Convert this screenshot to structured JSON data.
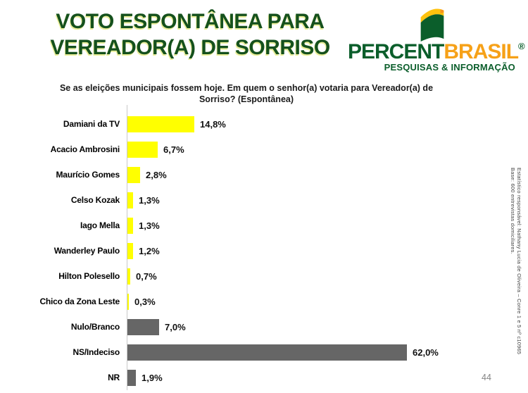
{
  "title": "VOTO ESPONTÂNEA PARA\nVEREADOR(A) DE SORRISO",
  "logo": {
    "brand_part1": "PERCENT",
    "brand_part2": "BRASIL",
    "registered": "®",
    "tagline": "PESQUISAS & INFORMAÇÃO",
    "flag_green": "#0b5e2b",
    "flag_yellow": "#ffc20e"
  },
  "question": "Se as eleições municipais fossem hoje. Em quem o senhor(a) votaria para Vereador(a) de Sorriso? (Espontânea)",
  "chart_data": {
    "type": "bar",
    "orientation": "horizontal",
    "title": "Voto espontâneo para Vereador(a) de Sorriso",
    "categories": [
      "Damiani da TV",
      "Acacio Ambrosini",
      "Maurício Gomes",
      "Celso Kozak",
      "Iago Mella",
      "Wanderley Paulo",
      "Hilton Polesello",
      "Chico da Zona Leste",
      "Nulo/Branco",
      "NS/Indeciso",
      "NR"
    ],
    "values": [
      14.8,
      6.7,
      2.8,
      1.3,
      1.3,
      1.2,
      0.7,
      0.3,
      7.0,
      62.0,
      1.9
    ],
    "value_labels": [
      "14,8%",
      "6,7%",
      "2,8%",
      "1,3%",
      "1,3%",
      "1,2%",
      "0,7%",
      "0,3%",
      "7,0%",
      "62,0%",
      "1,9%"
    ],
    "groups": [
      "candidate",
      "candidate",
      "candidate",
      "candidate",
      "candidate",
      "candidate",
      "candidate",
      "candidate",
      "neutral",
      "neutral",
      "neutral"
    ],
    "colors": {
      "candidate": "#ffff00",
      "neutral": "#666666"
    },
    "xlim": [
      0,
      65
    ],
    "grid": false,
    "legend": false
  },
  "footnote": {
    "line1": "Base: 600 entrevistas domiciliares.",
    "line2": "Estatístico responsável: Nathany Lucia de Oliveira – Conre 1 e 5 nº c10965"
  },
  "page_number": "44",
  "colors": {
    "title_green": "#15511d",
    "logo_green": "#0b5e2b",
    "logo_orange": "#f6a118",
    "bar_yellow": "#ffff00",
    "bar_gray": "#666666",
    "axis_gray": "#c9c9c9"
  }
}
